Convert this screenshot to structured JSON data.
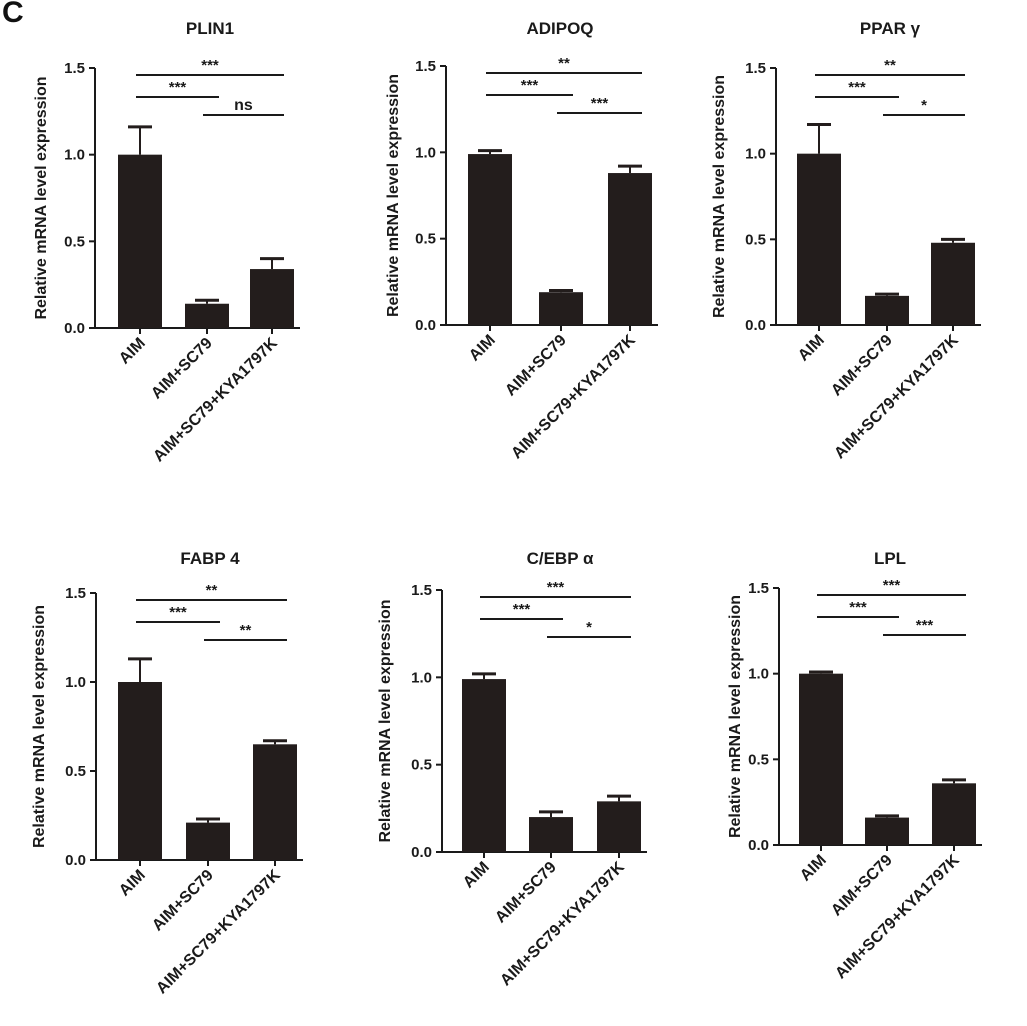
{
  "panel_label": "C",
  "colors": {
    "bar": "#231d1c",
    "axis": "#1a1a1a"
  },
  "chart_data": [
    {
      "type": "bar",
      "title": "PLIN1",
      "ylabel": "Relative mRNA level expression",
      "categories": [
        "AIM",
        "AIM+SC79",
        "AIM+SC79+KYA1797K"
      ],
      "values": [
        1.0,
        0.14,
        0.34
      ],
      "errors": [
        0.16,
        0.02,
        0.06
      ],
      "ylim": [
        0,
        1.5
      ],
      "yticks": [
        "0.0",
        "0.5",
        "1.0",
        "1.5"
      ],
      "significance": [
        {
          "from": 0,
          "to": 2,
          "label": "***"
        },
        {
          "from": 0,
          "to": 1,
          "label": "***"
        },
        {
          "from": 1,
          "to": 2,
          "label": "ns"
        }
      ]
    },
    {
      "type": "bar",
      "title": "ADIPOQ",
      "ylabel": "Relative mRNA level expression",
      "categories": [
        "AIM",
        "AIM+SC79",
        "AIM+SC79+KYA1797K"
      ],
      "values": [
        0.99,
        0.19,
        0.88
      ],
      "errors": [
        0.02,
        0.01,
        0.04
      ],
      "ylim": [
        0,
        1.5
      ],
      "yticks": [
        "0.0",
        "0.5",
        "1.0",
        "1.5"
      ],
      "significance": [
        {
          "from": 0,
          "to": 2,
          "label": "**"
        },
        {
          "from": 0,
          "to": 1,
          "label": "***"
        },
        {
          "from": 1,
          "to": 2,
          "label": "***"
        }
      ]
    },
    {
      "type": "bar",
      "title": "PPAR γ",
      "ylabel": "Relative mRNA level expression",
      "categories": [
        "AIM",
        "AIM+SC79",
        "AIM+SC79+KYA1797K"
      ],
      "values": [
        1.0,
        0.17,
        0.48
      ],
      "errors": [
        0.17,
        0.01,
        0.02
      ],
      "ylim": [
        0,
        1.5
      ],
      "yticks": [
        "0.0",
        "0.5",
        "1.0",
        "1.5"
      ],
      "significance": [
        {
          "from": 0,
          "to": 2,
          "label": "**"
        },
        {
          "from": 0,
          "to": 1,
          "label": "***"
        },
        {
          "from": 1,
          "to": 2,
          "label": "*"
        }
      ]
    },
    {
      "type": "bar",
      "title": "FABP 4",
      "ylabel": "Relative mRNA level expression",
      "categories": [
        "AIM",
        "AIM+SC79",
        "AIM+SC79+KYA1797K"
      ],
      "values": [
        1.0,
        0.21,
        0.65
      ],
      "errors": [
        0.13,
        0.02,
        0.02
      ],
      "ylim": [
        0,
        1.5
      ],
      "yticks": [
        "0.0",
        "0.5",
        "1.0",
        "1.5"
      ],
      "significance": [
        {
          "from": 0,
          "to": 2,
          "label": "**"
        },
        {
          "from": 0,
          "to": 1,
          "label": "***"
        },
        {
          "from": 1,
          "to": 2,
          "label": "**"
        }
      ]
    },
    {
      "type": "bar",
      "title": "C/EBP α",
      "ylabel": "Relative mRNA level expression",
      "categories": [
        "AIM",
        "AIM+SC79",
        "AIM+SC79+KYA1797K"
      ],
      "values": [
        0.99,
        0.2,
        0.29
      ],
      "errors": [
        0.03,
        0.03,
        0.03
      ],
      "ylim": [
        0,
        1.5
      ],
      "yticks": [
        "0.0",
        "0.5",
        "1.0",
        "1.5"
      ],
      "significance": [
        {
          "from": 0,
          "to": 2,
          "label": "***"
        },
        {
          "from": 0,
          "to": 1,
          "label": "***"
        },
        {
          "from": 1,
          "to": 2,
          "label": "*"
        }
      ]
    },
    {
      "type": "bar",
      "title": "LPL",
      "ylabel": "Relative mRNA level expression",
      "categories": [
        "AIM",
        "AIM+SC79",
        "AIM+SC79+KYA1797K"
      ],
      "values": [
        1.0,
        0.16,
        0.36
      ],
      "errors": [
        0.01,
        0.01,
        0.02
      ],
      "ylim": [
        0,
        1.5
      ],
      "yticks": [
        "0.0",
        "0.5",
        "1.0",
        "1.5"
      ],
      "significance": [
        {
          "from": 0,
          "to": 2,
          "label": "***"
        },
        {
          "from": 0,
          "to": 1,
          "label": "***"
        },
        {
          "from": 1,
          "to": 2,
          "label": "***"
        }
      ]
    }
  ]
}
